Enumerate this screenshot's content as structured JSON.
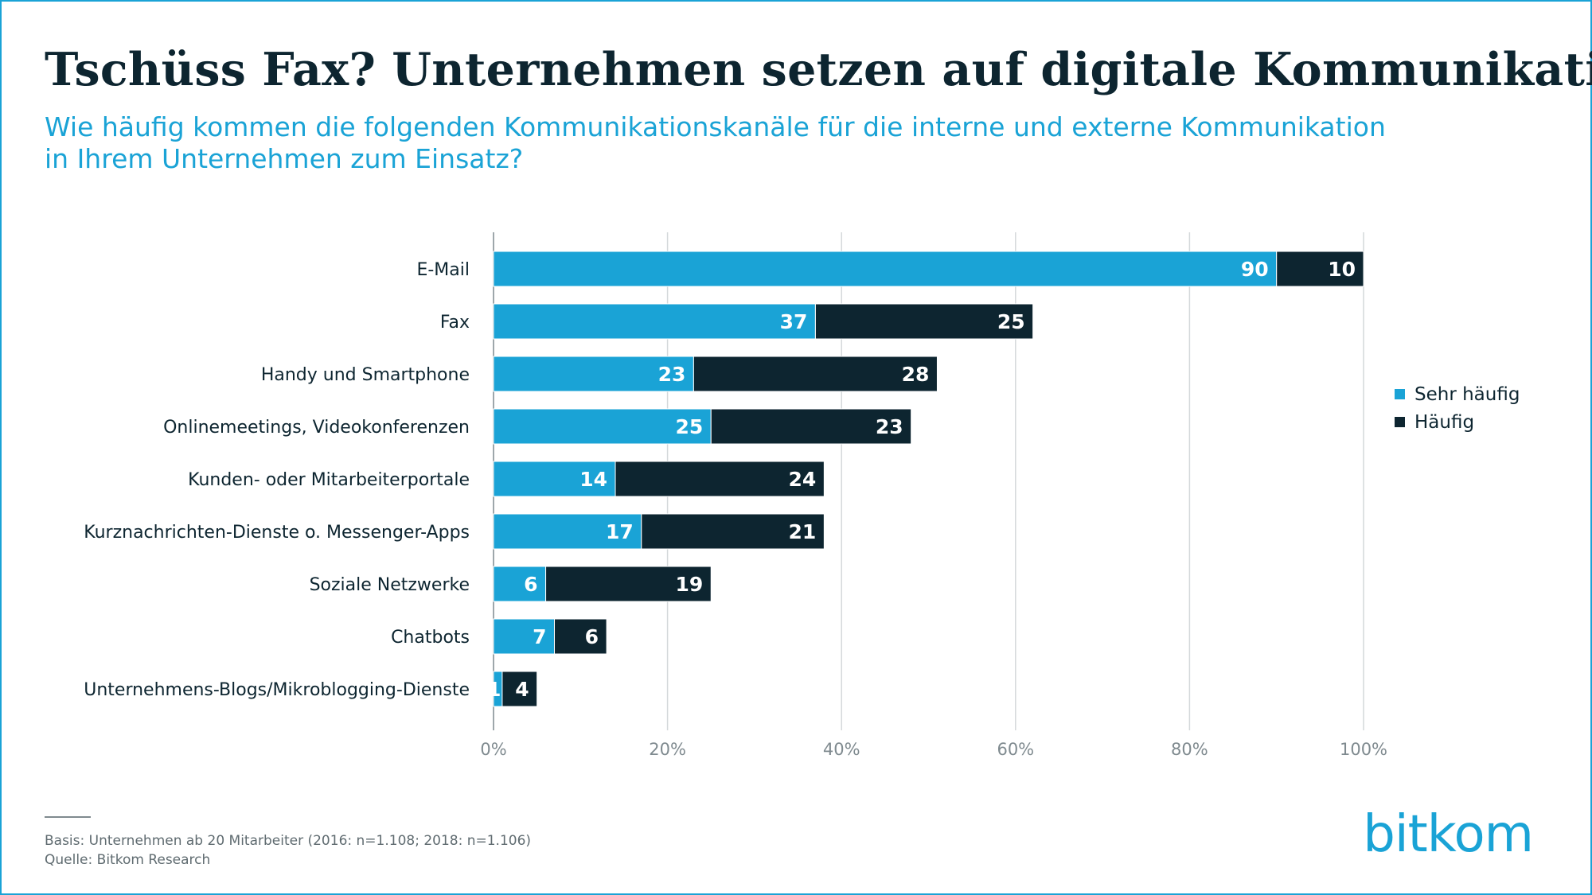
{
  "title": "Tschüss Fax? Unternehmen setzen auf digitale Kommunikation",
  "subtitle": "Wie häufig kommen die folgenden Kommunikationskanäle für die interne und externe Kommunikation in Ihrem Unternehmen zum Einsatz?",
  "colors": {
    "accent": "#1aa3d6",
    "dark": "#0d2530",
    "grid": "#d4d8da",
    "tick": "#7f8a8f"
  },
  "legend": [
    {
      "label": "Sehr häufig",
      "color": "#1aa3d6"
    },
    {
      "label": "Häufig",
      "color": "#0d2530"
    }
  ],
  "chart_data": {
    "type": "bar",
    "orientation": "horizontal",
    "stacked": true,
    "categories": [
      "E-Mail",
      "Fax",
      "Handy und Smartphone",
      "Onlinemeetings, Videokonferenzen",
      "Kunden- oder Mitarbeiterportale",
      "Kurznachrichten-Dienste o. Messenger-Apps",
      "Soziale Netzwerke",
      "Chatbots",
      "Unternehmens-Blogs/Mikroblogging-Dienste"
    ],
    "series": [
      {
        "name": "Sehr häufig",
        "color": "#1aa3d6",
        "values": [
          90,
          37,
          23,
          25,
          14,
          17,
          6,
          7,
          1
        ]
      },
      {
        "name": "Häufig",
        "color": "#0d2530",
        "values": [
          10,
          25,
          28,
          23,
          24,
          21,
          19,
          6,
          4
        ]
      }
    ],
    "xlim": [
      0,
      100
    ],
    "xticks": [
      "0%",
      "20%",
      "40%",
      "60%",
      "80%",
      "100%"
    ],
    "grid": true,
    "legend_position": "right"
  },
  "footnote": {
    "line1": "Basis: Unternehmen ab 20 Mitarbeiter (2016: n=1.108; 2018: n=1.106)",
    "line2": "Quelle: Bitkom Research"
  },
  "logo": "bitkom"
}
